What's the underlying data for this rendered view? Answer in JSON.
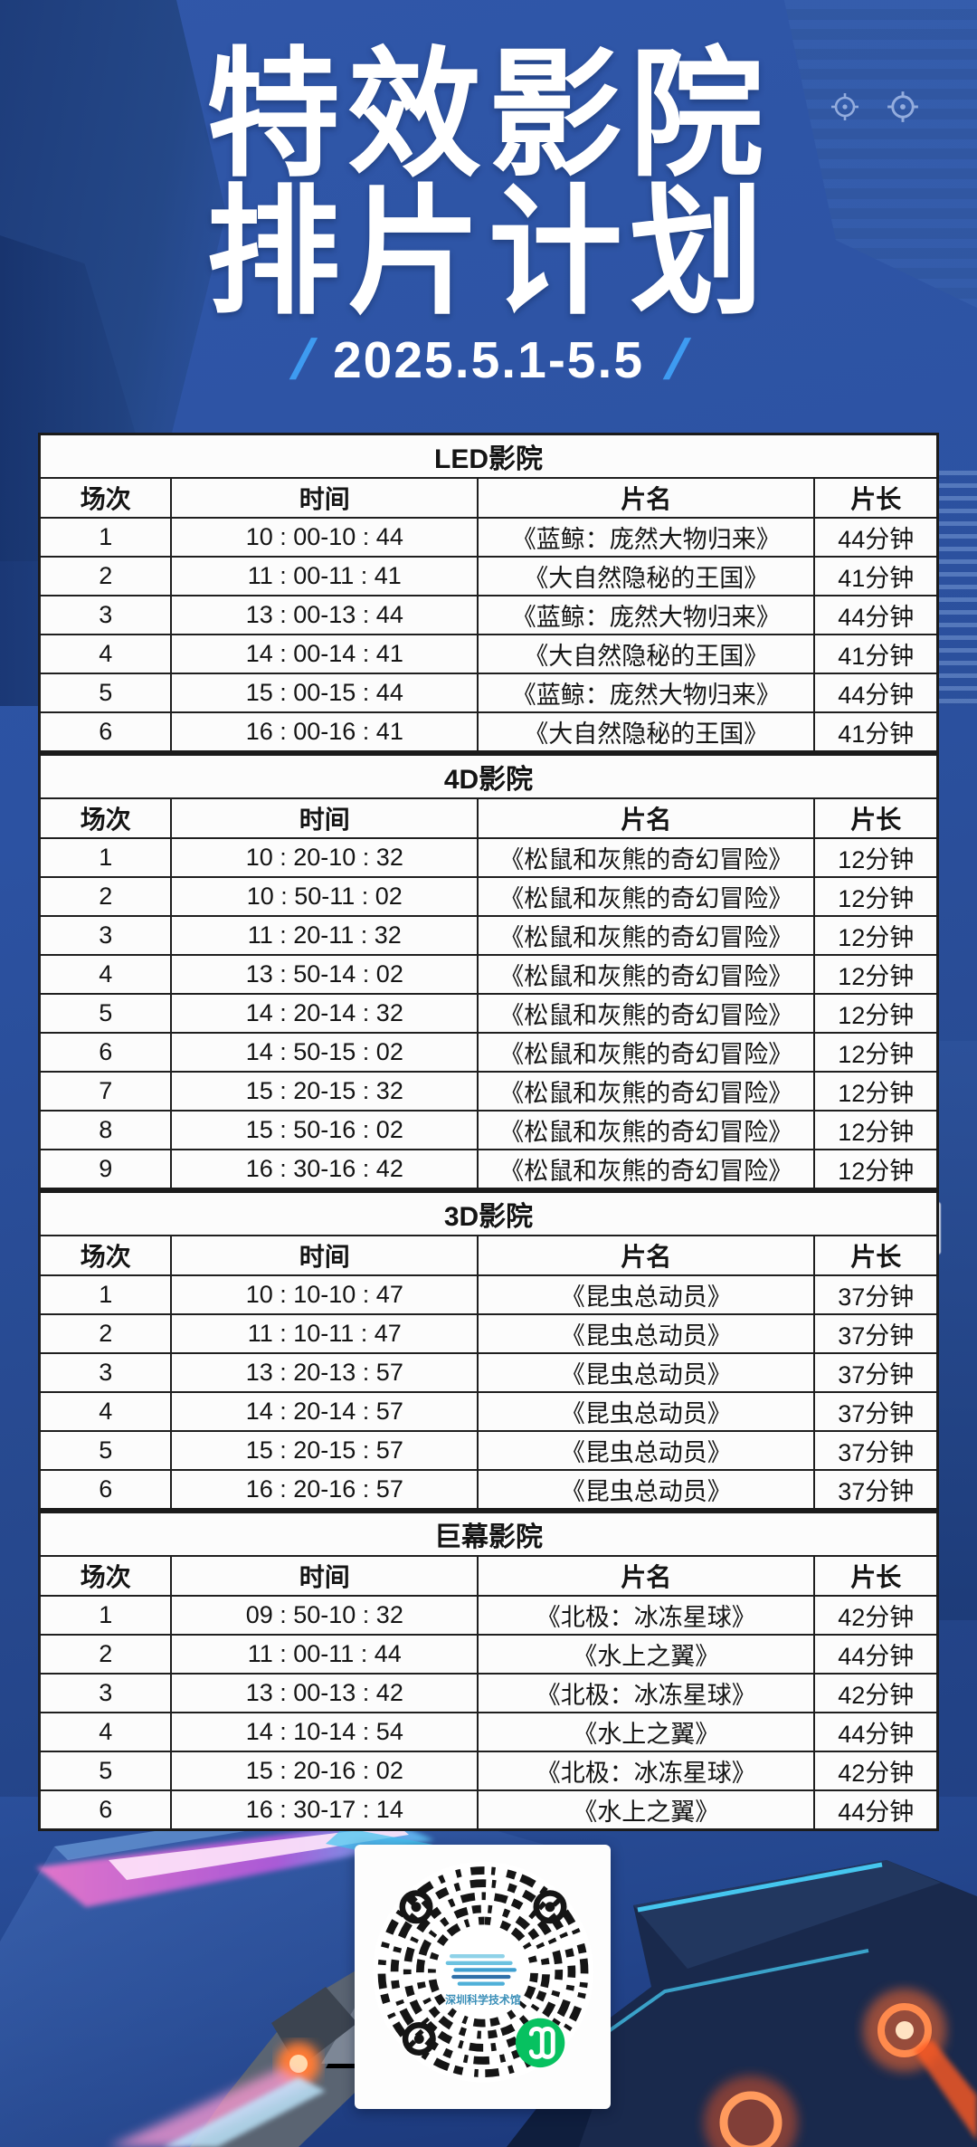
{
  "poster": {
    "title_line1": "特效影院",
    "title_line2": "排片计划",
    "date_slash_left": "/",
    "date_slash_right": "/",
    "date_range": "2025.5.1-5.5"
  },
  "schedule": {
    "columns": [
      "场次",
      "时间",
      "片名",
      "片长"
    ],
    "sections": [
      {
        "cinema": "LED影院",
        "rows": [
          [
            "1",
            "10 : 00-10 : 44",
            "《蓝鲸：庞然大物归来》",
            "44分钟"
          ],
          [
            "2",
            "11 : 00-11 : 41",
            "《大自然隐秘的王国》",
            "41分钟"
          ],
          [
            "3",
            "13 : 00-13 : 44",
            "《蓝鲸：庞然大物归来》",
            "44分钟"
          ],
          [
            "4",
            "14 : 00-14 : 41",
            "《大自然隐秘的王国》",
            "41分钟"
          ],
          [
            "5",
            "15 : 00-15 : 44",
            "《蓝鲸：庞然大物归来》",
            "44分钟"
          ],
          [
            "6",
            "16 : 00-16 : 41",
            "《大自然隐秘的王国》",
            "41分钟"
          ]
        ]
      },
      {
        "cinema": "4D影院",
        "rows": [
          [
            "1",
            "10 : 20-10 : 32",
            "《松鼠和灰熊的奇幻冒险》",
            "12分钟"
          ],
          [
            "2",
            "10 : 50-11 : 02",
            "《松鼠和灰熊的奇幻冒险》",
            "12分钟"
          ],
          [
            "3",
            "11 : 20-11 : 32",
            "《松鼠和灰熊的奇幻冒险》",
            "12分钟"
          ],
          [
            "4",
            "13 : 50-14 : 02",
            "《松鼠和灰熊的奇幻冒险》",
            "12分钟"
          ],
          [
            "5",
            "14 : 20-14 : 32",
            "《松鼠和灰熊的奇幻冒险》",
            "12分钟"
          ],
          [
            "6",
            "14 : 50-15 : 02",
            "《松鼠和灰熊的奇幻冒险》",
            "12分钟"
          ],
          [
            "7",
            "15 : 20-15 : 32",
            "《松鼠和灰熊的奇幻冒险》",
            "12分钟"
          ],
          [
            "8",
            "15 : 50-16 : 02",
            "《松鼠和灰熊的奇幻冒险》",
            "12分钟"
          ],
          [
            "9",
            "16 : 30-16 : 42",
            "《松鼠和灰熊的奇幻冒险》",
            "12分钟"
          ]
        ]
      },
      {
        "cinema": "3D影院",
        "rows": [
          [
            "1",
            "10 : 10-10 : 47",
            "《昆虫总动员》",
            "37分钟"
          ],
          [
            "2",
            "11 : 10-11 : 47",
            "《昆虫总动员》",
            "37分钟"
          ],
          [
            "3",
            "13 : 20-13 : 57",
            "《昆虫总动员》",
            "37分钟"
          ],
          [
            "4",
            "14 : 20-14 : 57",
            "《昆虫总动员》",
            "37分钟"
          ],
          [
            "5",
            "15 : 20-15 : 57",
            "《昆虫总动员》",
            "37分钟"
          ],
          [
            "6",
            "16 : 20-16 : 57",
            "《昆虫总动员》",
            "37分钟"
          ]
        ]
      },
      {
        "cinema": "巨幕影院",
        "rows": [
          [
            "1",
            "09 : 50-10 : 32",
            "《北极：冰冻星球》",
            "42分钟"
          ],
          [
            "2",
            "11 : 00-11 : 44",
            "《水上之翼》",
            "44分钟"
          ],
          [
            "3",
            "13 : 00-13 : 42",
            "《北极：冰冻星球》",
            "42分钟"
          ],
          [
            "4",
            "14 : 10-14 : 54",
            "《水上之翼》",
            "44分钟"
          ],
          [
            "5",
            "15 : 20-16 : 02",
            "《北极：冰冻星球》",
            "42分钟"
          ],
          [
            "6",
            "16 : 30-17 : 14",
            "《水上之翼》",
            "44分钟"
          ]
        ]
      }
    ]
  },
  "qr_card": {
    "logo_label": "深圳科学技术馆"
  },
  "colors": {
    "accent_slash": "#3E9BF1",
    "wechat_green": "#07C160",
    "background_blue": "#2B52A4",
    "table_border": "#1B1B1B"
  }
}
